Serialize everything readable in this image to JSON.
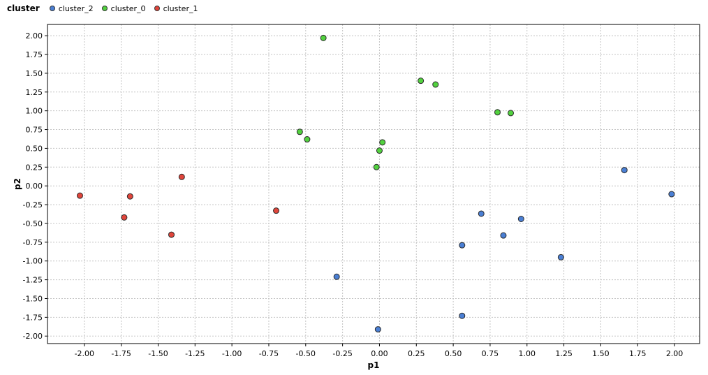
{
  "legend": {
    "title": "cluster",
    "items": [
      {
        "label": "cluster_2",
        "color": "#4a7fd4"
      },
      {
        "label": "cluster_0",
        "color": "#52d13f"
      },
      {
        "label": "cluster_1",
        "color": "#e0453b"
      }
    ]
  },
  "chart_data": {
    "type": "scatter",
    "xlabel": "p1",
    "ylabel": "p2",
    "xlim": [
      -2.25,
      2.17
    ],
    "ylim": [
      -2.1,
      2.15
    ],
    "xticks": [
      -2.0,
      -1.75,
      -1.5,
      -1.25,
      -1.0,
      -0.75,
      -0.5,
      -0.25,
      0.0,
      0.25,
      0.5,
      0.75,
      1.0,
      1.25,
      1.5,
      1.75,
      2.0
    ],
    "xtick_labels": [
      "-2.00",
      "-1.75",
      "-1.50",
      "-1.25",
      "-1.00",
      "-0.75",
      "-0.50",
      "-0.25",
      "0.00",
      "0.25",
      "0.50",
      "0.75",
      "1.00",
      "1.25",
      "1.50",
      "1.75",
      "2.00"
    ],
    "yticks": [
      2.0,
      1.75,
      1.5,
      1.25,
      1.0,
      0.75,
      0.5,
      0.25,
      0.0,
      -0.25,
      -0.5,
      -0.75,
      -1.0,
      -1.25,
      -1.5,
      -1.75,
      -2.0
    ],
    "ytick_labels": [
      "2.00",
      "1.75",
      "1.50",
      "1.25",
      "1.00",
      "0.75",
      "0.50",
      "0.25",
      "0.00",
      "-0.25",
      "-0.50",
      "-0.75",
      "-1.00",
      "-1.25",
      "-1.50",
      "-1.75",
      "-2.00"
    ],
    "grid": true,
    "legend_position": "top-left",
    "series": [
      {
        "name": "cluster_2",
        "color": "#4a7fd4",
        "points": [
          {
            "x": 1.66,
            "y": 0.21
          },
          {
            "x": 1.98,
            "y": -0.11
          },
          {
            "x": 0.69,
            "y": -0.37
          },
          {
            "x": 0.96,
            "y": -0.44
          },
          {
            "x": 0.84,
            "y": -0.66
          },
          {
            "x": 0.56,
            "y": -0.79
          },
          {
            "x": 1.23,
            "y": -0.95
          },
          {
            "x": -0.29,
            "y": -1.21
          },
          {
            "x": 0.56,
            "y": -1.73
          },
          {
            "x": -0.01,
            "y": -1.91
          }
        ]
      },
      {
        "name": "cluster_0",
        "color": "#52d13f",
        "points": [
          {
            "x": -0.38,
            "y": 1.97
          },
          {
            "x": 0.28,
            "y": 1.4
          },
          {
            "x": 0.38,
            "y": 1.35
          },
          {
            "x": 0.8,
            "y": 0.98
          },
          {
            "x": 0.89,
            "y": 0.97
          },
          {
            "x": -0.54,
            "y": 0.72
          },
          {
            "x": -0.49,
            "y": 0.62
          },
          {
            "x": 0.02,
            "y": 0.58
          },
          {
            "x": 0.0,
            "y": 0.47
          },
          {
            "x": -0.02,
            "y": 0.25
          }
        ]
      },
      {
        "name": "cluster_1",
        "color": "#e0453b",
        "points": [
          {
            "x": -1.34,
            "y": 0.12
          },
          {
            "x": -2.03,
            "y": -0.13
          },
          {
            "x": -1.69,
            "y": -0.14
          },
          {
            "x": -1.73,
            "y": -0.42
          },
          {
            "x": -0.7,
            "y": -0.33
          },
          {
            "x": -1.41,
            "y": -0.65
          }
        ]
      }
    ]
  }
}
